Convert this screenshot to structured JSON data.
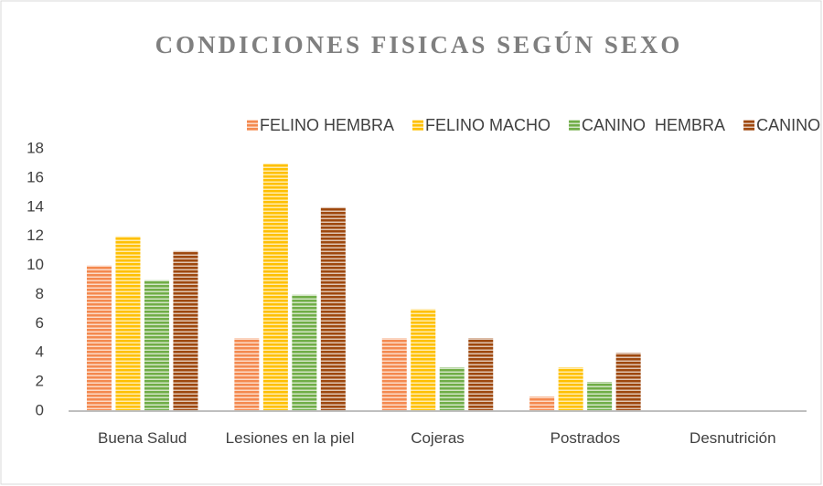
{
  "chart_data": {
    "type": "bar",
    "title": "CONDICIONES FISICAS SEGÚN SEXO",
    "categories": [
      "Buena Salud",
      "Lesiones en la piel",
      "Cojeras",
      "Postrados",
      "Desnutrición"
    ],
    "series": [
      {
        "name": "FELINO HEMBRA",
        "color": "#f4894f",
        "values": [
          10,
          5,
          5,
          1,
          0
        ]
      },
      {
        "name": "FELINO MACHO",
        "color": "#ffc000",
        "values": [
          12,
          17,
          7,
          3,
          0
        ]
      },
      {
        "name": "CANINO  HEMBRA",
        "color": "#70ad47",
        "values": [
          9,
          8,
          3,
          2,
          0
        ]
      },
      {
        "name": "CANINO  MACHO",
        "color": "#9e480e",
        "values": [
          11,
          14,
          5,
          4,
          0
        ]
      }
    ],
    "ylim": [
      0,
      18
    ],
    "yticks": [
      0,
      2,
      4,
      6,
      8,
      10,
      12,
      14,
      16,
      18
    ],
    "grid": false,
    "legend": "top"
  }
}
